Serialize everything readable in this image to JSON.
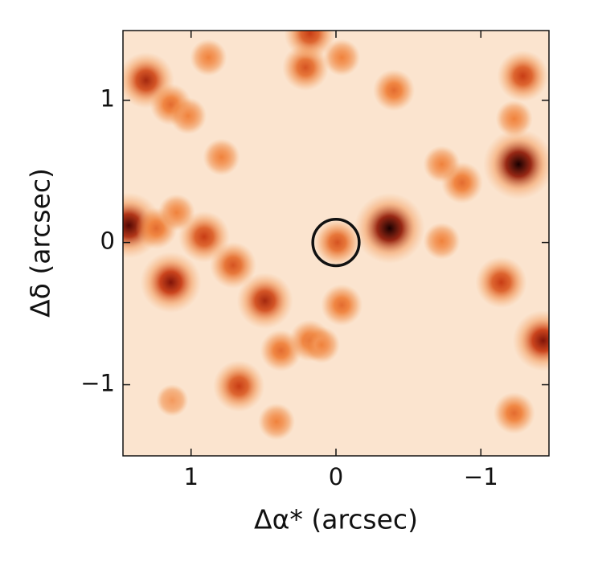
{
  "chart_data": {
    "type": "scatter",
    "xlabel": "Δα* (arcsec)",
    "ylabel": "Δδ (arcsec)",
    "x": [
      1.31,
      1.14,
      1.02,
      0.88,
      0.21,
      0.18,
      -0.04,
      -0.4,
      -1.29,
      -1.23,
      -1.26,
      -0.87,
      -0.73,
      0.79,
      -0.37,
      1.43,
      1.24,
      0.91,
      1.1,
      -0.01,
      0.71,
      1.14,
      0.49,
      -0.04,
      -1.14,
      -0.73,
      0.38,
      0.18,
      0.1,
      0.67,
      -1.43,
      -1.23,
      0.41,
      1.13
    ],
    "values": [
      1.14,
      0.97,
      0.89,
      1.3,
      1.23,
      1.47,
      1.3,
      1.07,
      1.17,
      0.87,
      0.55,
      0.42,
      0.55,
      0.6,
      0.1,
      0.12,
      0.1,
      0.04,
      0.21,
      0.0,
      -0.16,
      -0.28,
      -0.41,
      -0.44,
      -0.28,
      0.01,
      -0.76,
      -0.69,
      -0.72,
      -1.01,
      -0.69,
      -1.2,
      -1.26,
      -1.11
    ],
    "sizes": [
      0.7,
      0.4,
      0.3,
      0.3,
      0.5,
      0.6,
      0.3,
      0.4,
      0.6,
      0.3,
      1.0,
      0.4,
      0.3,
      0.3,
      1.0,
      0.9,
      0.4,
      0.6,
      0.3,
      0.5,
      0.5,
      0.8,
      0.7,
      0.4,
      0.6,
      0.3,
      0.4,
      0.4,
      0.3,
      0.6,
      0.8,
      0.4,
      0.3,
      0.2
    ],
    "target": {
      "x": 0,
      "y": 0,
      "radius": 0.16
    },
    "xlim": [
      1.47,
      -1.47
    ],
    "ylim": [
      -1.5,
      1.49
    ],
    "xticks": [
      1,
      0,
      {
        "value": -1,
        "label": "−1"
      }
    ],
    "yticks": [
      {
        "value": -1,
        "label": "−1"
      },
      0,
      1
    ],
    "background": "#fbe4cf",
    "grid": false
  }
}
